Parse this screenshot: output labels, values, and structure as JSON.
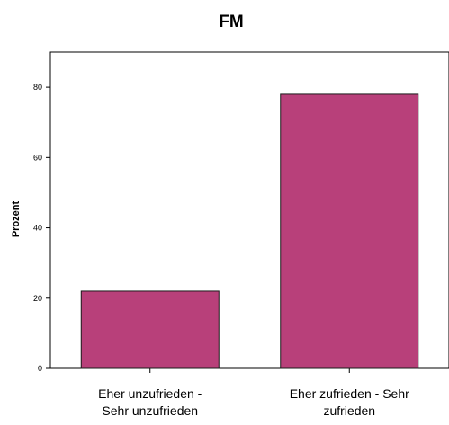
{
  "chart_data": {
    "type": "bar",
    "title": "FM",
    "xlabel": "",
    "ylabel": "Prozent",
    "ylim": [
      0,
      90
    ],
    "yticks": [
      0,
      20,
      40,
      60,
      80
    ],
    "categories": [
      [
        "Eher unzufrieden -",
        "Sehr unzufrieden"
      ],
      [
        "Eher zufrieden - Sehr",
        "zufrieden"
      ]
    ],
    "values": [
      22,
      78
    ],
    "grid": false,
    "legend": "none",
    "colors": {
      "bar_fill": "#b8407a",
      "bar_stroke": "#1a1a1a",
      "axis": "#000000",
      "background": "#ffffff"
    }
  }
}
